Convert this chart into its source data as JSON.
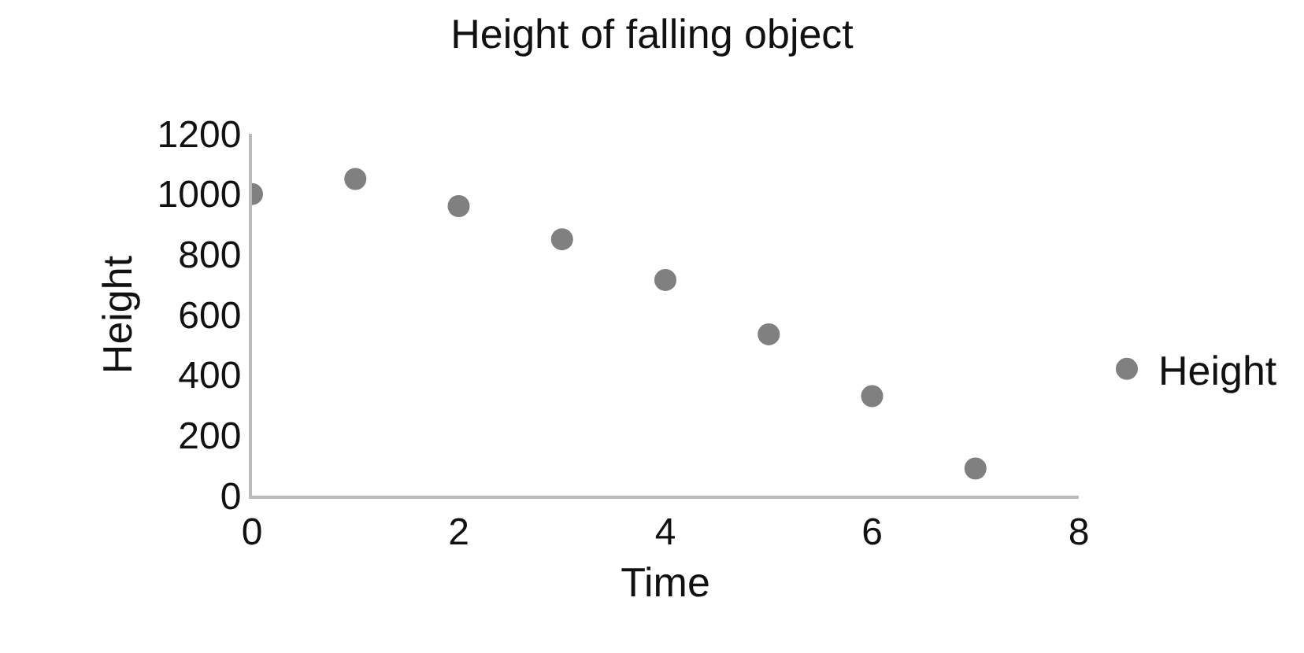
{
  "chart_data": {
    "type": "scatter",
    "title": "Height of falling object",
    "xlabel": "Time",
    "ylabel": "Height",
    "x": [
      0,
      1,
      2,
      3,
      4,
      5,
      6,
      7
    ],
    "series": [
      {
        "name": "Height",
        "color": "#808080",
        "values": [
          1000,
          1050,
          960,
          850,
          715,
          535,
          330,
          90
        ]
      }
    ],
    "xlim": [
      0,
      8
    ],
    "xticks": [
      0,
      2,
      4,
      6,
      8
    ],
    "ylim": [
      0,
      1200
    ],
    "yticks": [
      0,
      200,
      400,
      600,
      800,
      1000,
      1200
    ],
    "grid": false,
    "legend": "right",
    "marker": "circle"
  }
}
